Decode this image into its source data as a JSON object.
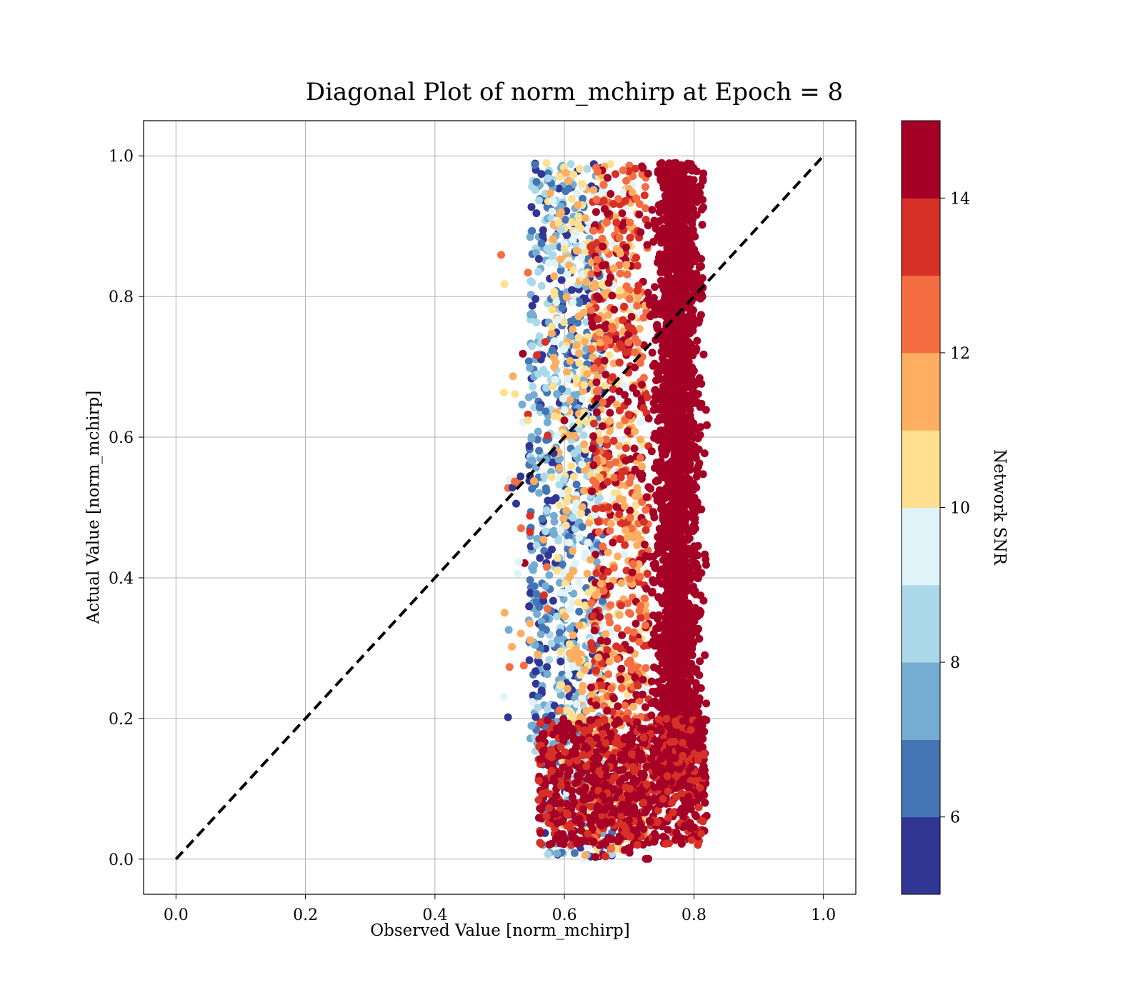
{
  "chart_data": {
    "type": "scatter",
    "title": "Diagonal Plot of norm_mchirp at Epoch = 8",
    "xlabel": "Observed Value [norm_mchirp]",
    "ylabel": "Actual Value [norm_mchirp]",
    "xlim": [
      -0.05,
      1.05
    ],
    "ylim": [
      -0.05,
      1.05
    ],
    "xticks": [
      "0.0",
      "0.2",
      "0.4",
      "0.6",
      "0.8",
      "1.0"
    ],
    "yticks": [
      "0.0",
      "0.2",
      "0.4",
      "0.6",
      "0.8",
      "1.0"
    ],
    "grid": true,
    "diagonal": {
      "x": [
        0.0,
        1.0
      ],
      "y": [
        0.0,
        1.0
      ],
      "style": "dashed",
      "color": "#000000"
    },
    "colorbar": {
      "label": "Network SNR",
      "range": [
        5,
        15
      ],
      "ticks": [
        "6",
        "8",
        "10",
        "12",
        "14"
      ],
      "colors": [
        "#313695",
        "#4575b4",
        "#74add1",
        "#abd9e9",
        "#e0f3f8",
        "#fee090",
        "#fdae61",
        "#f46d43",
        "#d73027",
        "#a50026"
      ]
    },
    "point_clusters": [
      {
        "description": "low-SNR points",
        "snr_range": [
          5,
          9
        ],
        "observed_range": [
          0.53,
          0.66
        ],
        "actual_range": [
          0.0,
          1.0
        ]
      },
      {
        "description": "mid-SNR points",
        "snr_range": [
          9,
          12
        ],
        "observed_range": [
          0.55,
          0.72
        ],
        "actual_range": [
          0.0,
          1.0
        ]
      },
      {
        "description": "high-SNR points",
        "snr_range": [
          13,
          15
        ],
        "observed_range": [
          0.71,
          0.86
        ],
        "actual_range": [
          0.0,
          1.0
        ]
      },
      {
        "description": "high-SNR low-mchirp points",
        "snr_range": [
          13,
          15
        ],
        "observed_range": [
          0.55,
          0.8
        ],
        "actual_range": [
          0.0,
          0.2
        ]
      }
    ]
  }
}
